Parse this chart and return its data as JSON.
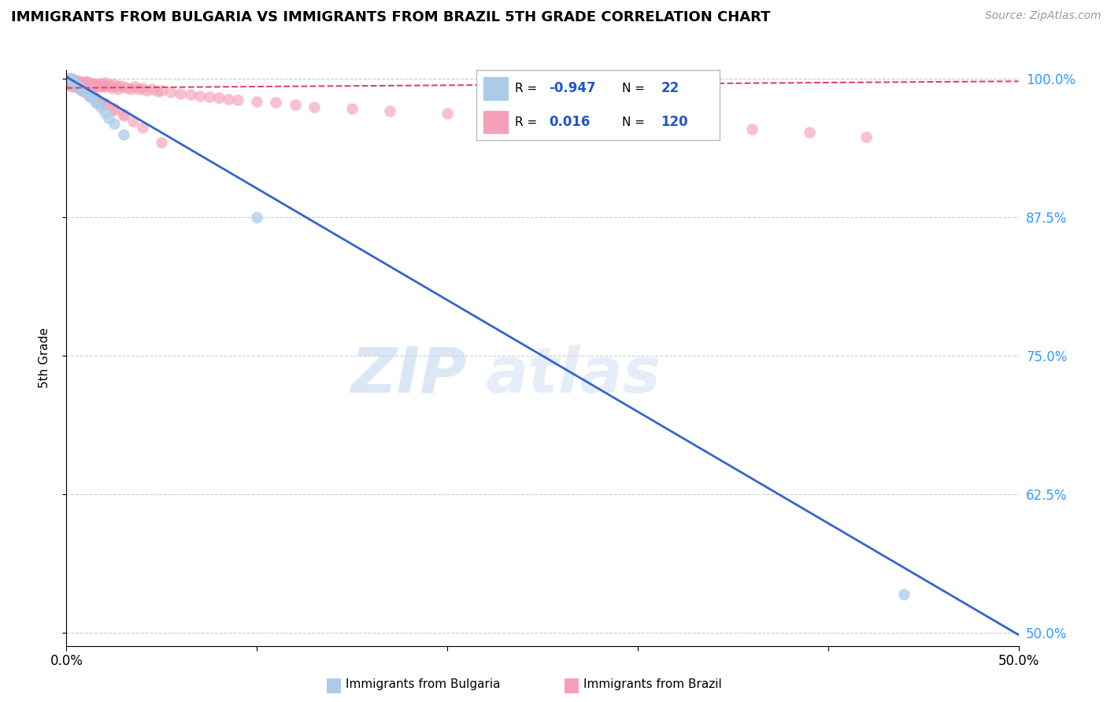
{
  "title": "IMMIGRANTS FROM BULGARIA VS IMMIGRANTS FROM BRAZIL 5TH GRADE CORRELATION CHART",
  "source": "Source: ZipAtlas.com",
  "ylabel": "5th Grade",
  "xlim": [
    0.0,
    0.5
  ],
  "ylim": [
    0.488,
    1.008
  ],
  "yticks": [
    0.5,
    0.625,
    0.75,
    0.875,
    1.0
  ],
  "ytick_labels": [
    "50.0%",
    "62.5%",
    "75.0%",
    "87.5%",
    "100.0%"
  ],
  "legend_R_bulgaria": "-0.947",
  "legend_N_bulgaria": "22",
  "legend_R_brazil": "0.016",
  "legend_N_brazil": "120",
  "color_bulgaria": "#aacce8",
  "color_brazil": "#f5a0b8",
  "trendline_bulgaria": "#3366cc",
  "trendline_brazil": "#dd4466",
  "watermark_zip_color": "#c5d8f0",
  "watermark_atlas_color": "#c5d8f0",
  "background_color": "#ffffff",
  "grid_color": "#cccccc",
  "bulgaria_x": [
    0.001,
    0.002,
    0.003,
    0.004,
    0.005,
    0.006,
    0.007,
    0.008,
    0.009,
    0.01,
    0.011,
    0.012,
    0.013,
    0.015,
    0.016,
    0.018,
    0.02,
    0.022,
    0.025,
    0.03,
    0.1,
    0.44
  ],
  "bulgaria_y": [
    1.0,
    1.0,
    1.0,
    0.995,
    0.995,
    0.993,
    0.992,
    0.99,
    0.99,
    0.99,
    0.988,
    0.985,
    0.983,
    0.98,
    0.978,
    0.975,
    0.97,
    0.965,
    0.96,
    0.95,
    0.875,
    0.535
  ],
  "brazil_x": [
    0.001,
    0.001,
    0.001,
    0.001,
    0.001,
    0.002,
    0.002,
    0.002,
    0.002,
    0.003,
    0.003,
    0.003,
    0.003,
    0.004,
    0.004,
    0.004,
    0.005,
    0.005,
    0.005,
    0.006,
    0.006,
    0.006,
    0.007,
    0.007,
    0.007,
    0.008,
    0.008,
    0.008,
    0.009,
    0.009,
    0.01,
    0.01,
    0.01,
    0.011,
    0.011,
    0.012,
    0.012,
    0.013,
    0.013,
    0.014,
    0.014,
    0.015,
    0.015,
    0.016,
    0.017,
    0.018,
    0.018,
    0.019,
    0.02,
    0.02,
    0.022,
    0.023,
    0.024,
    0.025,
    0.026,
    0.027,
    0.028,
    0.03,
    0.032,
    0.034,
    0.036,
    0.038,
    0.04,
    0.042,
    0.045,
    0.048,
    0.05,
    0.055,
    0.06,
    0.065,
    0.07,
    0.075,
    0.08,
    0.085,
    0.09,
    0.1,
    0.11,
    0.12,
    0.13,
    0.15,
    0.17,
    0.2,
    0.23,
    0.25,
    0.27,
    0.3,
    0.33,
    0.36,
    0.39,
    0.42,
    0.001,
    0.002,
    0.003,
    0.004,
    0.005,
    0.006,
    0.007,
    0.008,
    0.009,
    0.01,
    0.011,
    0.012,
    0.015,
    0.018,
    0.02,
    0.025,
    0.03,
    0.035,
    0.04,
    0.05,
    0.002,
    0.003,
    0.005,
    0.007,
    0.009,
    0.012,
    0.015,
    0.02,
    0.025,
    0.03
  ],
  "brazil_y": [
    1.0,
    0.998,
    0.996,
    0.999,
    0.997,
    1.0,
    0.998,
    0.996,
    0.994,
    0.999,
    0.997,
    0.995,
    0.993,
    0.999,
    0.997,
    0.995,
    0.999,
    0.997,
    0.995,
    0.998,
    0.996,
    0.994,
    0.998,
    0.996,
    0.994,
    0.997,
    0.995,
    0.993,
    0.997,
    0.994,
    0.998,
    0.995,
    0.992,
    0.997,
    0.994,
    0.997,
    0.994,
    0.996,
    0.993,
    0.996,
    0.993,
    0.996,
    0.993,
    0.995,
    0.994,
    0.996,
    0.993,
    0.994,
    0.997,
    0.993,
    0.995,
    0.994,
    0.992,
    0.995,
    0.993,
    0.991,
    0.994,
    0.993,
    0.992,
    0.991,
    0.993,
    0.991,
    0.992,
    0.99,
    0.991,
    0.989,
    0.99,
    0.988,
    0.987,
    0.986,
    0.985,
    0.984,
    0.983,
    0.982,
    0.981,
    0.98,
    0.979,
    0.977,
    0.975,
    0.973,
    0.971,
    0.969,
    0.967,
    0.965,
    0.963,
    0.96,
    0.958,
    0.955,
    0.952,
    0.948,
    0.999,
    0.998,
    0.997,
    0.996,
    0.995,
    0.994,
    0.993,
    0.991,
    0.99,
    0.989,
    0.988,
    0.986,
    0.983,
    0.979,
    0.977,
    0.972,
    0.967,
    0.962,
    0.956,
    0.943,
    0.997,
    0.995,
    0.993,
    0.991,
    0.989,
    0.986,
    0.983,
    0.978,
    0.973,
    0.968
  ],
  "brazil_trendline_x": [
    0.0,
    0.5
  ],
  "brazil_trendline_y": [
    0.992,
    0.998
  ],
  "bulgaria_trendline_x": [
    0.0,
    0.5
  ],
  "bulgaria_trendline_y": [
    1.002,
    0.498
  ]
}
